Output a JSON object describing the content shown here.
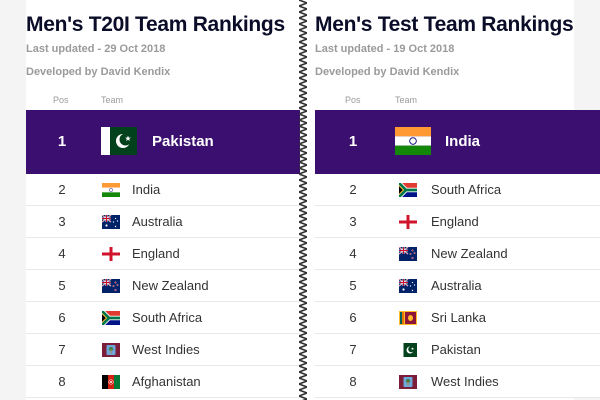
{
  "panels": [
    {
      "title": "Men's T20I Team Rankings",
      "updated": "Last updated - 29 Oct 2018",
      "developer": "Developed by David Kendix",
      "col_pos": "Pos",
      "col_team": "Team",
      "top": {
        "pos": "1",
        "team": "Pakistan",
        "flag": "pakistan-flag"
      },
      "rows": [
        {
          "pos": "2",
          "team": "India",
          "flag": "india-flag"
        },
        {
          "pos": "3",
          "team": "Australia",
          "flag": "australia-flag"
        },
        {
          "pos": "4",
          "team": "England",
          "flag": "england-flag"
        },
        {
          "pos": "5",
          "team": "New Zealand",
          "flag": "new-zealand-flag"
        },
        {
          "pos": "6",
          "team": "South Africa",
          "flag": "south-africa-flag"
        },
        {
          "pos": "7",
          "team": "West Indies",
          "flag": "west-indies-flag"
        },
        {
          "pos": "8",
          "team": "Afghanistan",
          "flag": "afghanistan-flag"
        }
      ]
    },
    {
      "title": "Men's Test Team Rankings",
      "updated": "Last updated - 19 Oct 2018",
      "developer": "Developed by David Kendix",
      "col_pos": "Pos",
      "col_team": "Team",
      "top": {
        "pos": "1",
        "team": "India",
        "flag": "india-flag"
      },
      "rows": [
        {
          "pos": "2",
          "team": "South Africa",
          "flag": "south-africa-flag"
        },
        {
          "pos": "3",
          "team": "England",
          "flag": "england-flag"
        },
        {
          "pos": "4",
          "team": "New Zealand",
          "flag": "new-zealand-flag"
        },
        {
          "pos": "5",
          "team": "Australia",
          "flag": "australia-flag"
        },
        {
          "pos": "6",
          "team": "Sri Lanka",
          "flag": "sri-lanka-flag"
        },
        {
          "pos": "7",
          "team": "Pakistan",
          "flag": "pakistan-flag"
        },
        {
          "pos": "8",
          "team": "West Indies",
          "flag": "west-indies-flag"
        }
      ]
    }
  ],
  "colors": {
    "accent": "#3b0f6f",
    "title": "#0b0d28",
    "muted": "#9a9a9a"
  }
}
